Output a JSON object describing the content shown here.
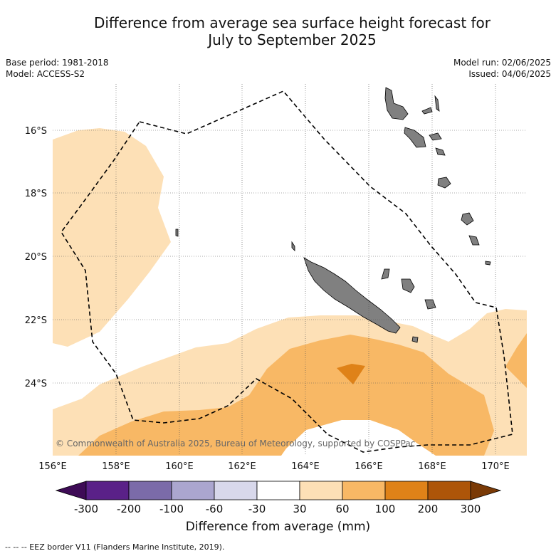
{
  "header": {
    "title_line1": "Difference from average sea surface height forecast for",
    "title_line2": "July to September 2025",
    "base_period": "Base period: 1981-2018",
    "model": "Model: ACCESS-S2",
    "model_run": "Model run: 02/06/2025",
    "issued": "Issued: 04/06/2025"
  },
  "map": {
    "lon_labels": [
      "156°E",
      "158°E",
      "160°E",
      "162°E",
      "164°E",
      "166°E",
      "168°E",
      "170°E"
    ],
    "lat_labels": [
      "16°S",
      "18°S",
      "20°S",
      "22°S",
      "24°S"
    ],
    "copyright": "© Commonwealth of Australia 2025, Bureau of Meteorology, supported by COSPPac",
    "colors": {
      "c30_60": "#fde0b6",
      "c60_100": "#f8b865",
      "c100_200": "#df8218",
      "land": "#808080"
    }
  },
  "colorbar": {
    "tick_labels": [
      "-300",
      "-200",
      "-100",
      "-60",
      "-30",
      "30",
      "60",
      "100",
      "200",
      "300"
    ],
    "colors": [
      "#3e0b56",
      "#5a2188",
      "#7b6ba9",
      "#aba6cf",
      "#d8d8eb",
      "#ffffff",
      "#fde0b6",
      "#f8b865",
      "#df8218",
      "#ad5509",
      "#7a3a06"
    ],
    "title": "Difference from average (mm)"
  },
  "footer": {
    "eez_note": "--  --  -- EEZ border V11 (Flanders Marine Institute, 2019)."
  }
}
